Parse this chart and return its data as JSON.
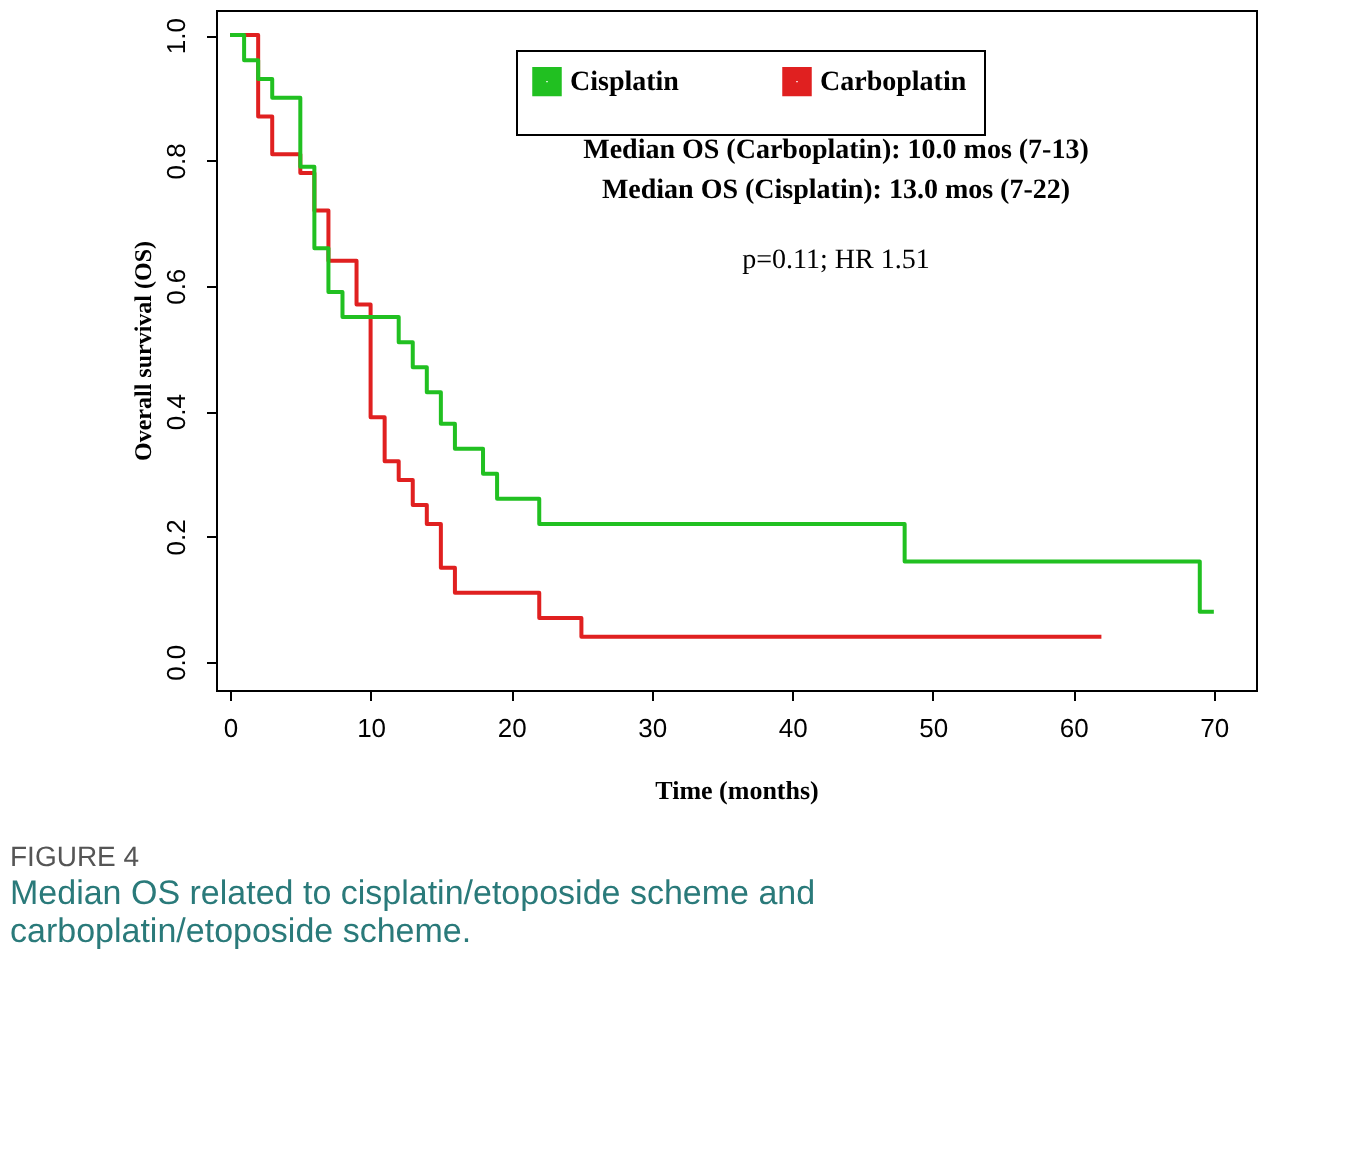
{
  "chart_data": {
    "type": "step",
    "xlabel": "Time (months)",
    "ylabel": "Overall survival (OS)",
    "xlim": [
      -1,
      73
    ],
    "ylim": [
      -0.045,
      1.04
    ],
    "xticks": [
      0,
      10,
      20,
      30,
      40,
      50,
      60,
      70
    ],
    "yticks": [
      {
        "value": 0,
        "label": "0.0"
      },
      0.2,
      0.4,
      0.6,
      0.8,
      {
        "value": 1,
        "label": "1.0"
      }
    ],
    "grid": false,
    "legend": "top right",
    "line_style": "solid",
    "marker": "none",
    "series": [
      {
        "name": "Cisplatin",
        "color": "#21c021",
        "x": [
          0,
          1,
          2,
          3,
          5,
          6,
          7,
          8,
          12,
          13,
          14,
          15,
          16,
          18,
          19,
          22,
          48,
          69,
          70
        ],
        "values": [
          1,
          0.96,
          0.93,
          0.9,
          0.79,
          0.66,
          0.59,
          0.55,
          0.51,
          0.47,
          0.43,
          0.38,
          0.34,
          0.3,
          0.26,
          0.22,
          0.16,
          0.08,
          0.08
        ]
      },
      {
        "name": "Carboplatin",
        "color": "#e02020",
        "x": [
          0,
          2,
          3,
          5,
          6,
          7,
          9,
          10,
          11,
          12,
          13,
          14,
          15,
          16,
          22,
          25,
          62
        ],
        "values": [
          1,
          0.87,
          0.81,
          0.78,
          0.72,
          0.64,
          0.57,
          0.39,
          0.32,
          0.29,
          0.25,
          0.22,
          0.15,
          0.11,
          0.07,
          0.04,
          0.04
        ]
      }
    ],
    "annotations": [
      "Median OS (Carboplatin): 10.0 mos (7-13)",
      "Median OS (Cisplatin): 13.0 mos (7-22)",
      "p=0.11; HR 1.51",
      "FIGURE 4",
      "Median OS related to cisplatin/etoposide scheme and carboplatin/etoposide scheme."
    ]
  }
}
